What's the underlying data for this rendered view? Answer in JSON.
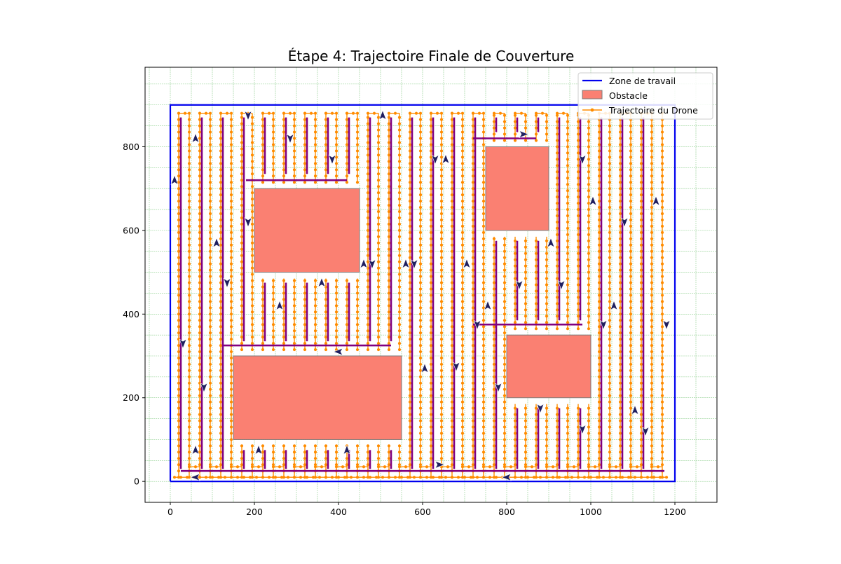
{
  "chart_data": {
    "type": "line",
    "title": "Étape 4: Trajectoire Finale de Couverture",
    "xlabel": "",
    "ylabel": "",
    "xlim": [
      -60,
      1300
    ],
    "ylim": [
      -50,
      990
    ],
    "x_ticks": [
      0,
      200,
      400,
      600,
      800,
      1000,
      1200
    ],
    "y_ticks": [
      0,
      200,
      400,
      600,
      800
    ],
    "grid": "minor",
    "legend_position": "top-right",
    "work_zone": {
      "x": [
        0,
        1200,
        1200,
        0,
        0
      ],
      "y": [
        0,
        0,
        900,
        900,
        0
      ]
    },
    "obstacles": [
      {
        "x": [
          150,
          550
        ],
        "y": [
          100,
          300
        ]
      },
      {
        "x": [
          200,
          450
        ],
        "y": [
          500,
          700
        ]
      },
      {
        "x": [
          750,
          900
        ],
        "y": [
          600,
          800
        ]
      },
      {
        "x": [
          800,
          1000
        ],
        "y": [
          200,
          350
        ]
      }
    ],
    "colors": {
      "work_zone": "#0000ee",
      "obstacle": "#fa8072",
      "trajectory": "#ff8c00",
      "sweep": "#800080",
      "arrow": "#1f1f5f",
      "grid": "#8fcf8f"
    },
    "series": [
      {
        "name": "Zone de travail"
      },
      {
        "name": "Obstacle"
      },
      {
        "name": "Trajectoire du Drone"
      }
    ]
  }
}
